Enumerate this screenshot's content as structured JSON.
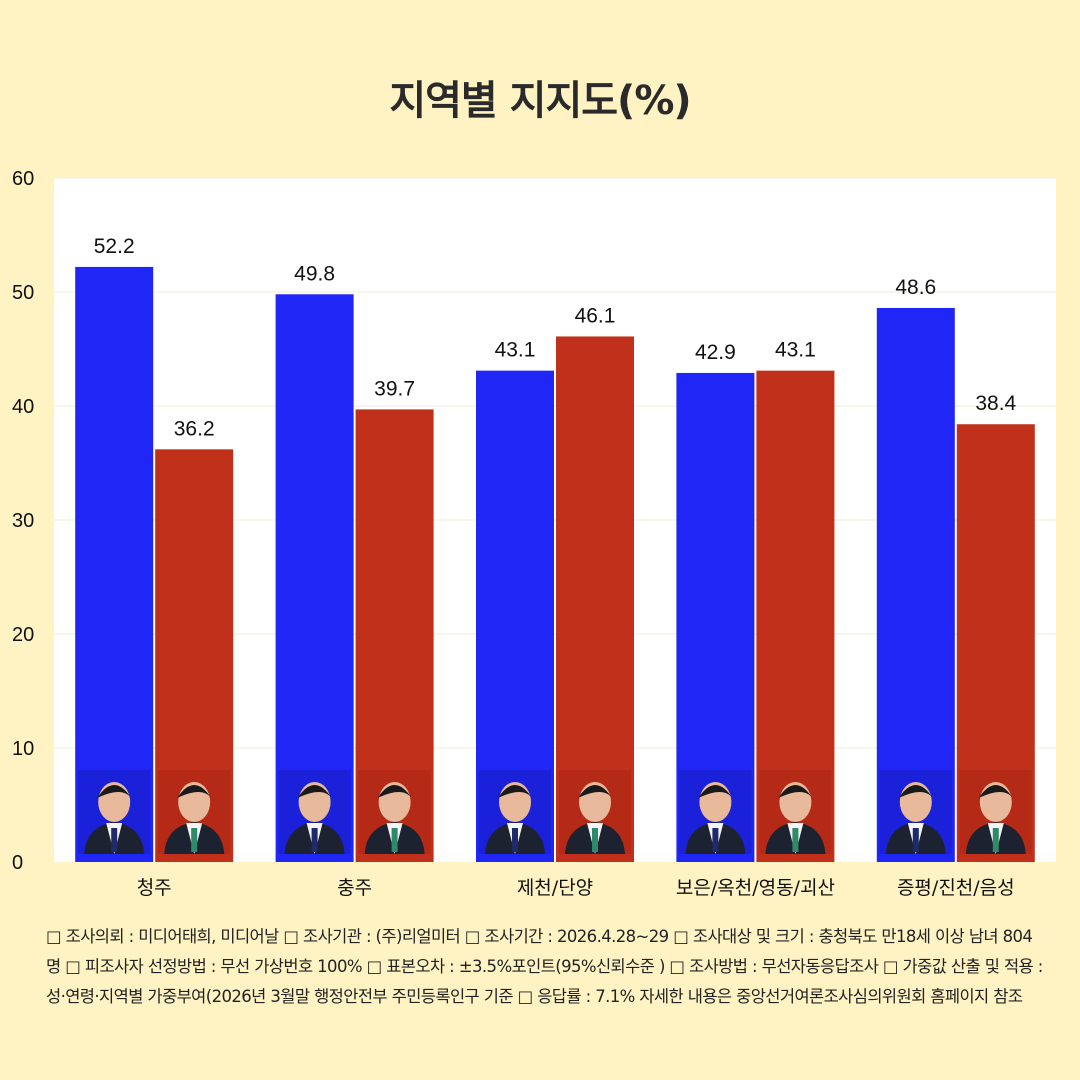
{
  "title": "지역별 지지도(%)",
  "colors": {
    "series_a": "#2026f5",
    "series_b": "#c0301a",
    "background": "#fff3c4",
    "plot": "#ffffff"
  },
  "chart_data": {
    "type": "bar",
    "title": "지역별 지지도(%)",
    "xlabel": "",
    "ylabel": "",
    "ylim": [
      0,
      60
    ],
    "yticks": [
      0,
      10,
      20,
      30,
      40,
      50,
      60
    ],
    "grid": true,
    "categories": [
      "청주",
      "충주",
      "제천/단양",
      "보은/옥천/영동/괴산",
      "증평/진천/음성"
    ],
    "series": [
      {
        "values": [
          52.2,
          49.8,
          43.1,
          42.9,
          48.6
        ]
      },
      {
        "values": [
          36.2,
          39.7,
          46.1,
          43.1,
          38.4
        ]
      }
    ]
  },
  "icons": {
    "series_a": "candidate-photo-icon",
    "series_b": "candidate-photo-icon"
  },
  "footnote": "□ 조사의뢰 : 미디어태희, 미디어날 □ 조사기관 : (주)리얼미터 □ 조사기간 : 2026.4.28~29 □ 조사대상 및 크기 : 충청북도 만18세 이상 남녀 804명 □ 피조사자 선정방법 : 무선 가상번호 100% □ 표본오차 : ±3.5%포인트(95%신뢰수준 ) □ 조사방법 : 무선자동응답조사 □ 가중값 산출 및 적용 : 성·연령·지역별 가중부여(2026년 3월말 행정안전부 주민등록인구 기준 □ 응답률 : 7.1%  자세한 내용은 중앙선거여론조사심의위원회 홈페이지 참조"
}
